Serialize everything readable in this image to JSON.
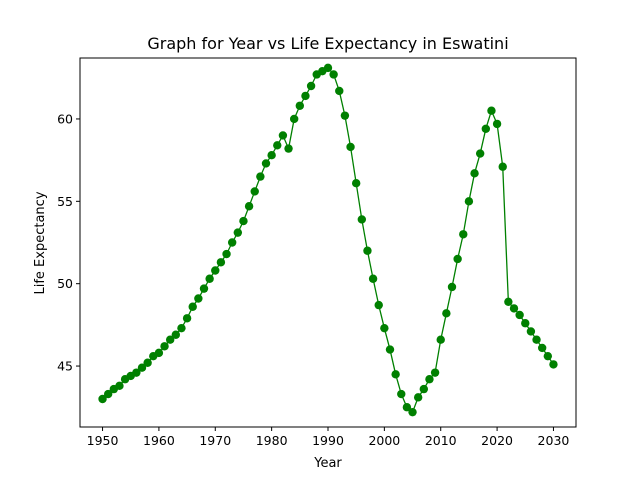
{
  "chart_data": {
    "type": "line",
    "title": "Graph for Year vs Life Expectancy in Eswatini",
    "xlabel": "Year",
    "ylabel": "Life Expectancy",
    "xlim": [
      1946,
      2034
    ],
    "ylim": [
      41.3,
      63.7
    ],
    "xticks": [
      1950,
      1960,
      1970,
      1980,
      1990,
      2000,
      2010,
      2020,
      2030
    ],
    "yticks": [
      45,
      50,
      55,
      60
    ],
    "grid": false,
    "series": [
      {
        "color": "#008000",
        "marker": "circle",
        "x": [
          1950,
          1951,
          1952,
          1953,
          1954,
          1955,
          1956,
          1957,
          1958,
          1959,
          1960,
          1961,
          1962,
          1963,
          1964,
          1965,
          1966,
          1967,
          1968,
          1969,
          1970,
          1971,
          1972,
          1973,
          1974,
          1975,
          1976,
          1977,
          1978,
          1979,
          1980,
          1981,
          1982,
          1983,
          1984,
          1985,
          1986,
          1987,
          1988,
          1989,
          1990,
          1991,
          1992,
          1993,
          1994,
          1995,
          1996,
          1997,
          1998,
          1999,
          2000,
          2001,
          2002,
          2003,
          2004,
          2005,
          2006,
          2007,
          2008,
          2009,
          2010,
          2011,
          2012,
          2013,
          2014,
          2015,
          2016,
          2017,
          2018,
          2019,
          2020,
          2021,
          2022,
          2023,
          2024,
          2025,
          2026,
          2027,
          2028,
          2029,
          2030
        ],
        "y": [
          43.0,
          43.3,
          43.6,
          43.8,
          44.2,
          44.4,
          44.6,
          44.9,
          45.2,
          45.6,
          45.8,
          46.2,
          46.6,
          46.9,
          47.3,
          47.9,
          48.6,
          49.1,
          49.7,
          50.3,
          50.8,
          51.3,
          51.8,
          52.5,
          53.1,
          53.8,
          54.7,
          55.6,
          56.5,
          57.3,
          57.8,
          58.4,
          59.0,
          58.2,
          60.0,
          60.8,
          61.4,
          62.0,
          62.7,
          62.9,
          63.1,
          62.7,
          61.7,
          60.2,
          58.3,
          56.1,
          53.9,
          52.0,
          50.3,
          48.7,
          47.3,
          46.0,
          44.5,
          43.3,
          42.5,
          42.2,
          43.1,
          43.6,
          44.2,
          44.6,
          46.6,
          48.2,
          49.8,
          51.5,
          53.0,
          55.0,
          56.7,
          57.9,
          59.4,
          60.5,
          59.7,
          57.1,
          48.9,
          48.5,
          48.1,
          47.6,
          47.1,
          46.6,
          46.1,
          45.6,
          45.1
        ]
      }
    ]
  }
}
